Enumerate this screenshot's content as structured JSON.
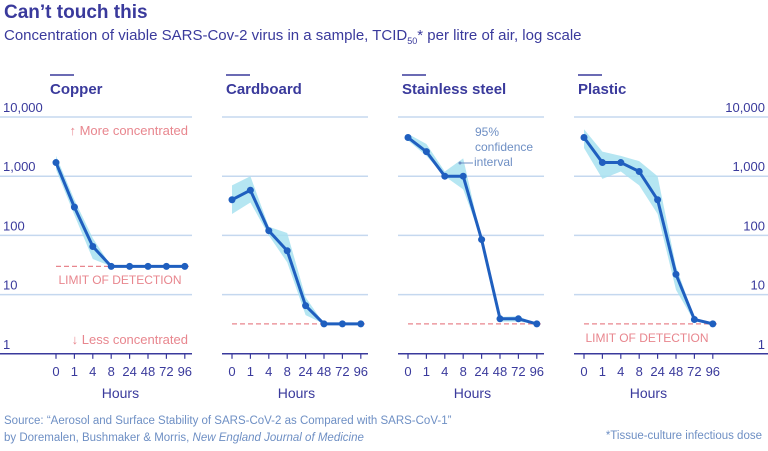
{
  "header": {
    "title": "Can’t touch this",
    "subtitle_pre": "Concentration of viable SARS-Cov-2 virus in a sample, TCID",
    "subtitle_sub": "50",
    "subtitle_post": "* per litre of air, log scale"
  },
  "footer": {
    "source_line1": "Source: “Aerosol and Surface Stability of SARS-CoV-2 as Compared with SARS-CoV-1”",
    "source_line2_pre": "by Doremalen, Bushmaker & Morris, ",
    "source_line2_journal": "New England Journal of Medicine",
    "footnote": "*Tissue-culture infectious dose"
  },
  "colors": {
    "title": "#3a3a9c",
    "line": "#1f5fbf",
    "ci_band": "#a8e2f0",
    "grid": "#c5d8ef",
    "axis": "#3a3a9c",
    "limit": "#e8868e",
    "annotation": "#6e8fc4"
  },
  "chart_data": {
    "type": "line",
    "title": "Can’t touch this",
    "ylabel": "TCID50 per litre of air (log scale)",
    "xlabel": "Hours",
    "y_scale": "log",
    "ylim": [
      1,
      10000
    ],
    "y_ticks": [
      1,
      10,
      100,
      1000,
      10000
    ],
    "y_tick_labels": [
      "1",
      "10",
      "100",
      "1,000",
      "10,000"
    ],
    "x_categories": [
      "0",
      "1",
      "4",
      "8",
      "24",
      "48",
      "72",
      "96"
    ],
    "limit_of_detection_label": "LIMIT OF DETECTION",
    "annotations": {
      "more": "↑ More concentrated",
      "less": "↓ Less concentrated",
      "ci": [
        "95%",
        "confidence",
        "interval"
      ]
    },
    "panels": [
      {
        "name": "Copper",
        "values": [
          1700,
          300,
          65,
          30,
          30,
          30,
          30,
          30
        ],
        "ci_low": [
          1300,
          220,
          40,
          30,
          30,
          30,
          30,
          30
        ],
        "ci_high": [
          2200,
          400,
          90,
          30,
          30,
          30,
          30,
          30
        ],
        "limit": 30
      },
      {
        "name": "Cardboard",
        "values": [
          400,
          580,
          120,
          55,
          6.5,
          3.2,
          3.2,
          3.2
        ],
        "ci_low": [
          230,
          360,
          100,
          35,
          4.5,
          3.2,
          3.2,
          3.2
        ],
        "ci_high": [
          700,
          1000,
          140,
          110,
          9,
          3.2,
          3.2,
          3.2
        ],
        "limit": 3.2
      },
      {
        "name": "Stainless steel",
        "values": [
          4500,
          2600,
          1000,
          1000,
          85,
          3.9,
          3.9,
          3.2
        ],
        "ci_low": [
          4000,
          2200,
          1000,
          600,
          85,
          3.5,
          3.5,
          3.2
        ],
        "ci_high": [
          5200,
          3500,
          1200,
          2000,
          85,
          4.2,
          4.3,
          3.2
        ],
        "limit": 3.2
      },
      {
        "name": "Plastic",
        "values": [
          4500,
          1700,
          1700,
          1200,
          400,
          22,
          3.8,
          3.2
        ],
        "ci_low": [
          3000,
          900,
          1200,
          700,
          230,
          12,
          3.5,
          3.2
        ],
        "ci_high": [
          6200,
          2600,
          2200,
          1800,
          1000,
          30,
          4.0,
          3.2
        ],
        "limit": 3.2
      }
    ]
  }
}
